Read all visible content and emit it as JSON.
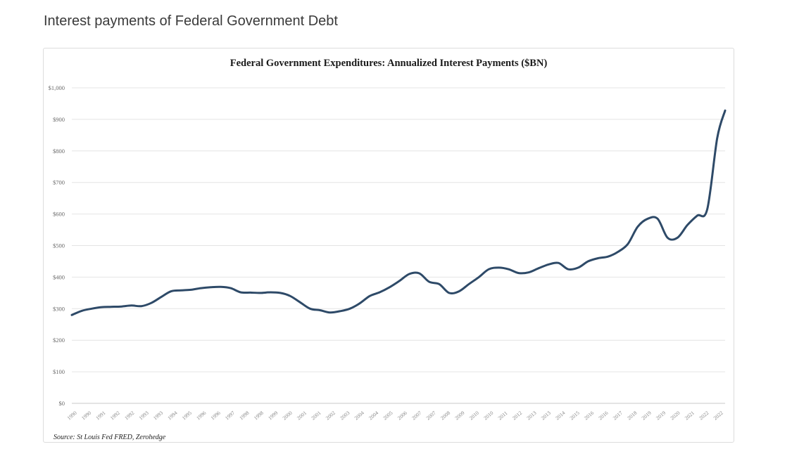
{
  "page": {
    "heading": "Interest payments of Federal Government Debt"
  },
  "chart_data": {
    "type": "line",
    "title": "Federal Government Expenditures: Annualized Interest Payments ($BN)",
    "xlabel": "",
    "ylabel": "",
    "ylim": [
      0,
      1000
    ],
    "yticks": [
      "$0",
      "$100",
      "$200",
      "$300",
      "$400",
      "$500",
      "$600",
      "$700",
      "$800",
      "$900",
      "$1,000"
    ],
    "ytick_values": [
      0,
      100,
      200,
      300,
      400,
      500,
      600,
      700,
      800,
      900,
      1000
    ],
    "xticks": [
      "1990",
      "1990",
      "1991",
      "1992",
      "1992",
      "1993",
      "1993",
      "1994",
      "1995",
      "1996",
      "1996",
      "1997",
      "1998",
      "1998",
      "1999",
      "2000",
      "2001",
      "2001",
      "2002",
      "2003",
      "2004",
      "2004",
      "2005",
      "2006",
      "2007",
      "2007",
      "2008",
      "2009",
      "2010",
      "2010",
      "2011",
      "2012",
      "2013",
      "2013",
      "2014",
      "2015",
      "2016",
      "2016",
      "2017",
      "2018",
      "2019",
      "2019",
      "2020",
      "2021",
      "2022",
      "2022"
    ],
    "x": [
      1990.0,
      1990.5,
      1991.0,
      1991.5,
      1992.0,
      1992.5,
      1993.0,
      1993.5,
      1994.0,
      1994.5,
      1995.0,
      1995.5,
      1996.0,
      1996.5,
      1997.0,
      1997.5,
      1998.0,
      1998.5,
      1999.0,
      1999.5,
      2000.0,
      2000.5,
      2001.0,
      2001.5,
      2002.0,
      2002.5,
      2003.0,
      2003.5,
      2004.0,
      2004.5,
      2005.0,
      2005.5,
      2006.0,
      2006.5,
      2007.0,
      2007.5,
      2008.0,
      2008.5,
      2009.0,
      2009.5,
      2010.0,
      2010.5,
      2011.0,
      2011.5,
      2012.0,
      2012.5,
      2013.0,
      2013.5,
      2014.0,
      2014.5,
      2015.0,
      2015.5,
      2016.0,
      2016.5,
      2017.0,
      2017.5,
      2018.0,
      2018.5,
      2019.0,
      2019.5,
      2020.0,
      2020.5,
      2021.0,
      2021.5,
      2022.0,
      2022.5,
      2022.9
    ],
    "series": [
      {
        "name": "",
        "values": [
          280,
          293,
          300,
          305,
          306,
          307,
          310,
          308,
          318,
          337,
          355,
          358,
          360,
          365,
          368,
          369,
          365,
          352,
          351,
          350,
          352,
          350,
          340,
          320,
          300,
          295,
          288,
          292,
          300,
          317,
          340,
          352,
          368,
          388,
          410,
          412,
          385,
          378,
          350,
          355,
          378,
          400,
          425,
          430,
          425,
          413,
          415,
          428,
          440,
          445,
          425,
          430,
          450,
          460,
          465,
          480,
          505,
          560,
          585,
          585,
          525,
          525,
          565,
          595,
          615,
          840,
          928
        ]
      }
    ],
    "source": "Source: St Louis Fed FRED, Zerohedge",
    "grid": true,
    "legend": "none",
    "line_color": "#2e4a68"
  }
}
